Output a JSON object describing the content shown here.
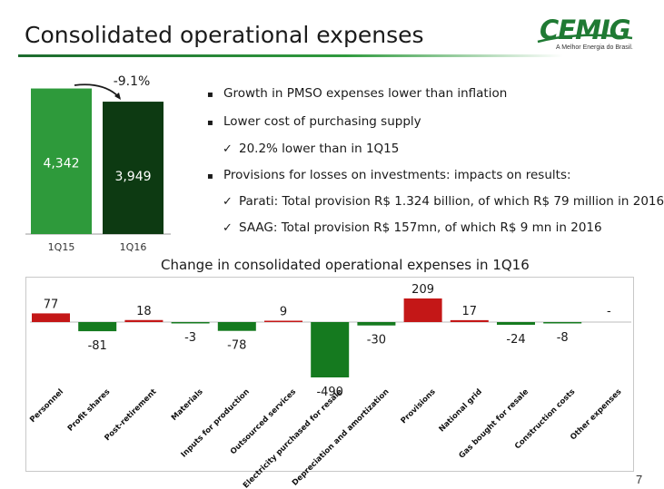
{
  "header": {
    "title": "Consolidated operational expenses",
    "logo_text": "CEMIG",
    "logo_tagline": "A Melhor Energia do Brasil."
  },
  "bullets": [
    {
      "marker": "▪",
      "text": "Growth in PMSO expenses lower than inflation",
      "level": 1
    },
    {
      "marker": "▪",
      "text": "Lower cost of purchasing supply",
      "level": 1
    },
    {
      "marker": "✓",
      "text": "20.2% lower than in 1Q15",
      "level": 2
    },
    {
      "marker": "▪",
      "text": "Provisions for losses on investments: impacts on results:",
      "level": 1
    },
    {
      "marker": "✓",
      "text": "Parati: Total provision R$ 1.324 billion, of which R$ 79 million in 2016",
      "level": 2
    },
    {
      "marker": "✓",
      "text": "SAAG:  Total provision R$ 157mn, of which R$ 9 mn in 2016",
      "level": 2
    }
  ],
  "page_number": "7",
  "colors": {
    "green_bright": "#2e9a3b",
    "green_dark": "#0d3a12",
    "waterfall_green": "#157a1f",
    "waterfall_red": "#c41717",
    "brand_green": "#1f7a33"
  },
  "chart_data": [
    {
      "type": "bar",
      "categories": [
        "1Q15",
        "1Q16"
      ],
      "values": [
        4342,
        3949
      ],
      "labels": [
        "4,342",
        "3,949"
      ],
      "annotation": "-9.1%",
      "ylim": [
        0,
        4600
      ]
    },
    {
      "type": "bar",
      "title": "Change in consolidated operational expenses in 1Q16",
      "categories": [
        "Personnel",
        "Profit shares",
        "Post-retirement",
        "Materials",
        "Inputs for production",
        "Outsourced services",
        "Electricity purchased for resale",
        "Depreciation and amortization",
        "Provisions",
        "National grid",
        "Gas bought for resale",
        "Construction costs",
        "Other expenses"
      ],
      "values": [
        77,
        -81,
        18,
        -3,
        -78,
        9,
        -490,
        -30,
        209,
        17,
        -24,
        -8,
        0
      ],
      "labels": [
        "77",
        "-81",
        "18",
        "-3",
        "-78",
        "9",
        "-490",
        "-30",
        "209",
        "17",
        "-24",
        "-8",
        "-"
      ],
      "ylim": [
        -520,
        250
      ]
    }
  ]
}
